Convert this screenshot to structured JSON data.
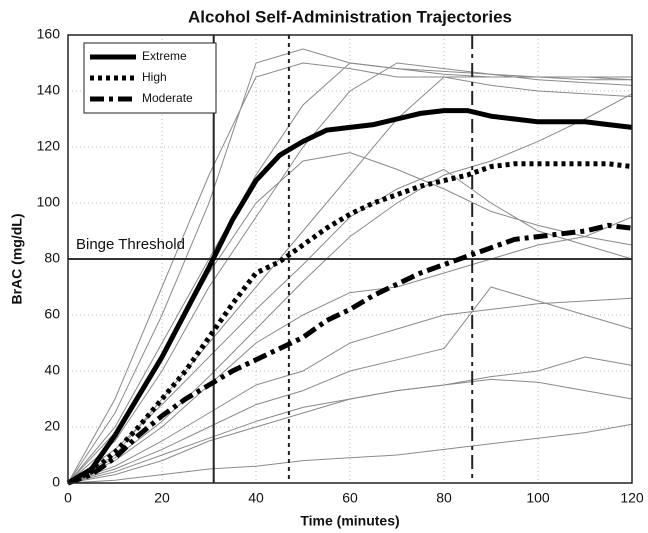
{
  "chart_data": {
    "type": "line",
    "title": "Alcohol Self-Administration Trajectories",
    "x_label": "Time (minutes)",
    "y_label": "BrAC (mg/dL)",
    "xlim": [
      0,
      120
    ],
    "ylim": [
      0,
      160
    ],
    "xticks": [
      0,
      20,
      40,
      60,
      80,
      100,
      120
    ],
    "yticks": [
      0,
      20,
      40,
      60,
      80,
      100,
      120,
      140,
      160
    ],
    "grid": true,
    "legend": "upper left",
    "x": [
      0,
      5,
      10,
      15,
      20,
      25,
      30,
      35,
      40,
      45,
      50,
      55,
      60,
      65,
      70,
      75,
      80,
      85,
      90,
      95,
      100,
      105,
      110,
      115,
      120
    ],
    "series": [
      {
        "name": "Extreme",
        "color": "#000000",
        "style": "solid",
        "values": [
          0,
          5,
          17,
          31,
          45,
          61,
          77,
          94,
          108,
          117,
          122,
          126,
          127,
          128,
          130,
          132,
          133,
          133,
          131,
          130,
          129,
          129,
          129,
          128,
          127
        ]
      },
      {
        "name": "High",
        "color": "#000000",
        "style": "dotted",
        "values": [
          0,
          4,
          11,
          20,
          30,
          40,
          52,
          64,
          75,
          79,
          85,
          91,
          96,
          100,
          103,
          106,
          108,
          110,
          113,
          114,
          114,
          114,
          114,
          114,
          113
        ]
      },
      {
        "name": "Moderate",
        "color": "#000000",
        "style": "dashdot",
        "values": [
          0,
          3,
          9,
          17,
          24,
          30,
          35,
          40,
          44,
          48,
          52,
          58,
          62,
          67,
          71,
          75,
          78,
          81,
          84,
          87,
          88,
          89,
          90,
          92,
          91
        ]
      }
    ],
    "trajectory_x": [
      0,
      10,
      20,
      30,
      40,
      50,
      60,
      70,
      80,
      90,
      100,
      110,
      120
    ],
    "trajectory_color": "#8a8a8a",
    "trajectories": [
      [
        0,
        25,
        60,
        100,
        150,
        155,
        150,
        148,
        147,
        146,
        145,
        145,
        144
      ],
      [
        0,
        30,
        70,
        110,
        145,
        150,
        148,
        145,
        145,
        145,
        145,
        145,
        145
      ],
      [
        0,
        20,
        50,
        80,
        110,
        135,
        150,
        148,
        146,
        145,
        145,
        144,
        144
      ],
      [
        0,
        15,
        40,
        70,
        95,
        120,
        140,
        150,
        148,
        146,
        144,
        143,
        142
      ],
      [
        0,
        10,
        30,
        50,
        70,
        90,
        110,
        130,
        145,
        142,
        140,
        139,
        138
      ],
      [
        0,
        12,
        28,
        45,
        62,
        78,
        95,
        105,
        112,
        100,
        90,
        85,
        80
      ],
      [
        0,
        8,
        20,
        35,
        50,
        60,
        68,
        70,
        75,
        80,
        85,
        88,
        95
      ],
      [
        0,
        6,
        15,
        25,
        35,
        40,
        50,
        55,
        60,
        62,
        64,
        65,
        66
      ],
      [
        0,
        5,
        12,
        20,
        28,
        33,
        40,
        44,
        48,
        70,
        65,
        60,
        55
      ],
      [
        0,
        3,
        8,
        15,
        20,
        25,
        30,
        33,
        35,
        38,
        40,
        45,
        42
      ],
      [
        0,
        4,
        10,
        16,
        22,
        27,
        30,
        33,
        35,
        37,
        36,
        33,
        30
      ],
      [
        0,
        1,
        3,
        5,
        6,
        8,
        9,
        10,
        12,
        14,
        16,
        18,
        21
      ],
      [
        0,
        18,
        45,
        75,
        100,
        115,
        118,
        112,
        105,
        97,
        92,
        88,
        85
      ],
      [
        0,
        9,
        22,
        38,
        55,
        72,
        88,
        100,
        110,
        115,
        122,
        130,
        139
      ]
    ],
    "vlines": [
      {
        "x": 31,
        "style": "solid"
      },
      {
        "x": 47,
        "style": "dotted"
      },
      {
        "x": 86,
        "style": "dashdot"
      }
    ],
    "threshold": {
      "y": 80,
      "label": "Binge Threshold"
    }
  }
}
